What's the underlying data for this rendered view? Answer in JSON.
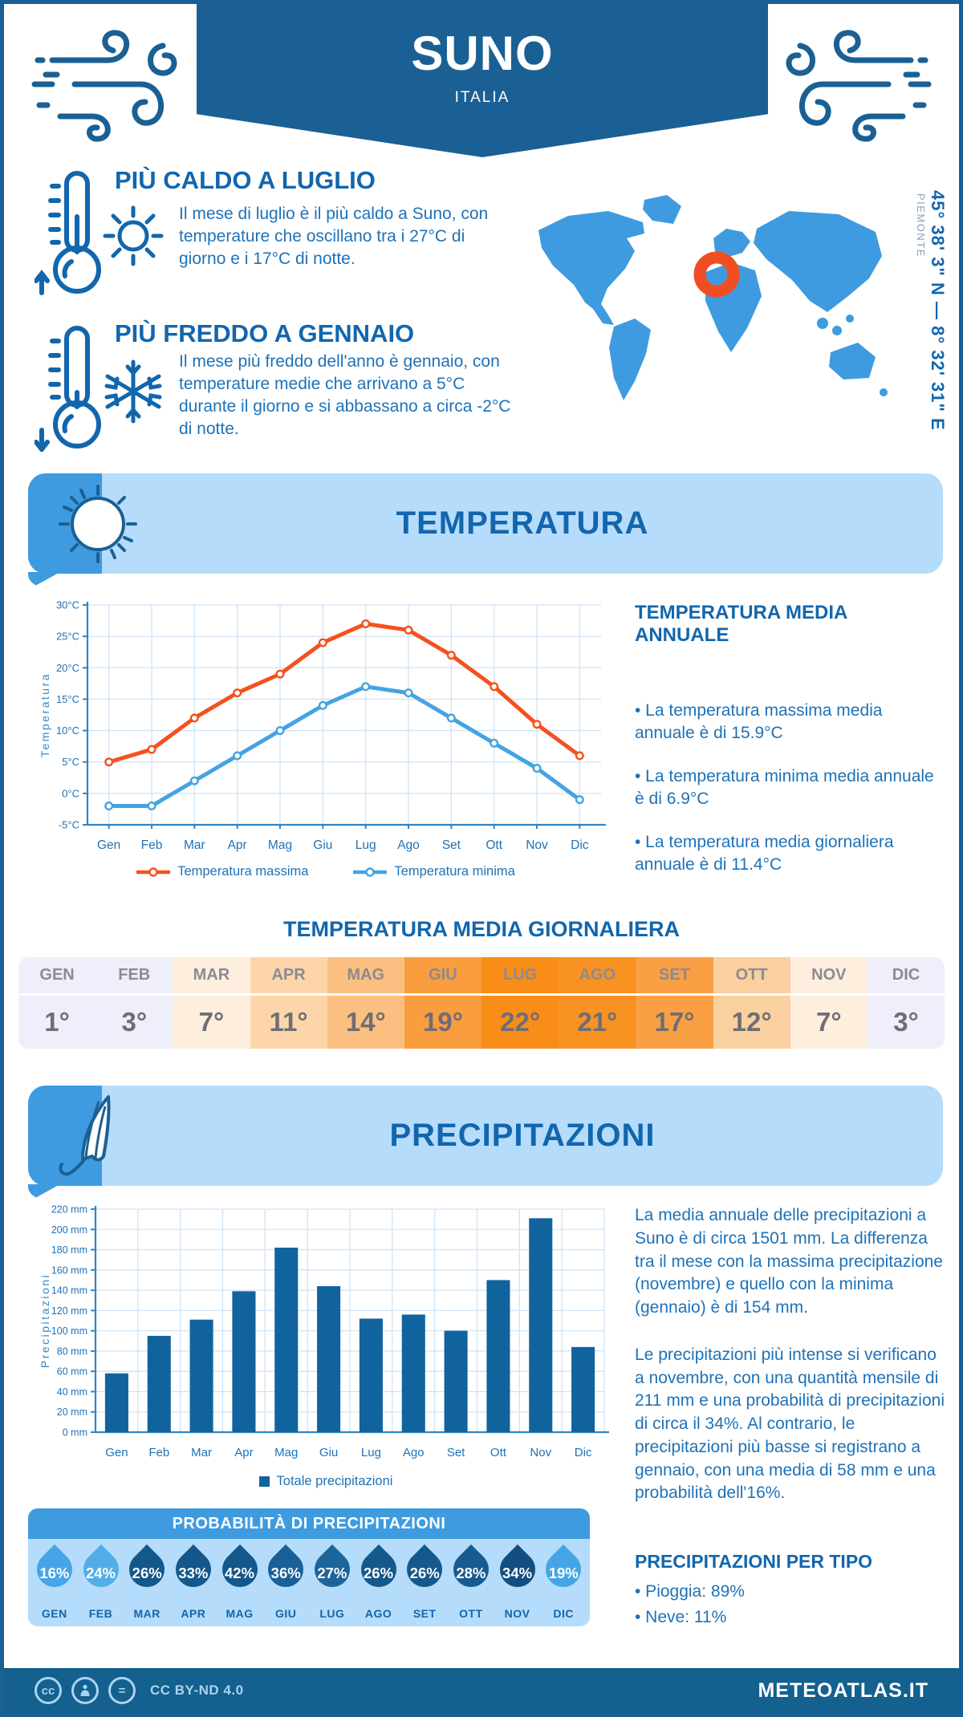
{
  "colors": {
    "primary": "#1b6094",
    "medium": "#3e9be0",
    "light_panel": "#b5dcfa",
    "heading": "#1266ad",
    "body_text": "#1e72b8",
    "line_max": "#f4511e",
    "line_min": "#45a3e2",
    "bar": "#11639e",
    "marker": "#f04e22",
    "grid": "#cfe4f6",
    "axis": "#2f86c4"
  },
  "header": {
    "title": "SUNO",
    "subtitle": "ITALIA"
  },
  "highlights": {
    "hot": {
      "title": "PIÙ CALDO A LUGLIO",
      "text": "Il mese di luglio è il più caldo a Suno, con temperature che oscillano tra i 27°C di giorno e i 17°C di notte."
    },
    "cold": {
      "title": "PIÙ FREDDO A GENNAIO",
      "text": "Il mese più freddo dell'anno è gennaio, con temperature medie che arrivano a 5°C durante il giorno e si abbassano a circa -2°C di notte."
    }
  },
  "map": {
    "coordinates": "45° 38' 3\" N — 8° 32' 31\" E",
    "region": "PIEMONTE"
  },
  "sections": {
    "temperature": "TEMPERATURA",
    "precipitation": "PRECIPITAZIONI"
  },
  "annual": {
    "title": "TEMPERATURA MEDIA ANNUALE",
    "bullets": [
      "• La temperatura massima media annuale è di 15.9°C",
      "• La temperatura minima media annuale è di 6.9°C",
      "• La temperatura media giornaliera annuale è di 11.4°C"
    ]
  },
  "daily_table": {
    "title": "TEMPERATURA MEDIA GIORNALIERA",
    "months": [
      "GEN",
      "FEB",
      "MAR",
      "APR",
      "MAG",
      "GIU",
      "LUG",
      "AGO",
      "SET",
      "OTT",
      "NOV",
      "DIC"
    ],
    "values": [
      "1°",
      "3°",
      "7°",
      "11°",
      "14°",
      "19°",
      "22°",
      "21°",
      "17°",
      "12°",
      "7°",
      "3°"
    ],
    "cell_colors": [
      "#eeeffa",
      "#eeeffa",
      "#fdeedd",
      "#fcd6aa",
      "#fbbf81",
      "#f99d3e",
      "#f88d18",
      "#f89222",
      "#f99f44",
      "#fbd0a0",
      "#fdeedd",
      "#eeeffa"
    ]
  },
  "chart_data": [
    {
      "type": "line",
      "title": "Temperatura media mensile",
      "categories": [
        "Gen",
        "Feb",
        "Mar",
        "Apr",
        "Mag",
        "Giu",
        "Lug",
        "Ago",
        "Set",
        "Ott",
        "Nov",
        "Dic"
      ],
      "series": [
        {
          "name": "Temperatura massima",
          "color": "#f4511e",
          "values": [
            5,
            7,
            12,
            16,
            19,
            24,
            27,
            26,
            22,
            17,
            11,
            6
          ]
        },
        {
          "name": "Temperatura minima",
          "color": "#45a3e2",
          "values": [
            -2,
            -2,
            2,
            6,
            10,
            14,
            17,
            16,
            12,
            8,
            4,
            -1
          ]
        }
      ],
      "ylabel": "Temperatura",
      "ylim": [
        -5,
        30
      ],
      "ytick_step": 5,
      "ytick_suffix": "°C",
      "grid": true,
      "legend_position": "bottom"
    },
    {
      "type": "bar",
      "title": "Precipitazioni mensili",
      "categories": [
        "Gen",
        "Feb",
        "Mar",
        "Apr",
        "Mag",
        "Giu",
        "Lug",
        "Ago",
        "Set",
        "Ott",
        "Nov",
        "Dic"
      ],
      "series": [
        {
          "name": "Totale precipitazioni",
          "color": "#11639e",
          "values": [
            58,
            95,
            111,
            139,
            182,
            144,
            112,
            116,
            100,
            150,
            211,
            84
          ]
        }
      ],
      "ylabel": "Precipitazioni",
      "ylim": [
        0,
        220
      ],
      "ytick_step": 20,
      "ytick_suffix": " mm",
      "grid": true,
      "legend_position": "bottom"
    }
  ],
  "precip_text": {
    "p1": "La media annuale delle precipitazioni a Suno è di circa 1501 mm. La differenza tra il mese con la massima precipitazione (novembre) e quello con la minima (gennaio) è di 154 mm.",
    "p2": "Le precipitazioni più intense si verificano a novembre, con una quantità mensile di 211 mm e una probabilità di precipitazioni di circa il 34%. Al contrario, le precipitazioni più basse si registrano a gennaio, con una media di 58 mm e una probabilità dell'16%."
  },
  "probability": {
    "title": "PROBABILITÀ DI PRECIPITAZIONI",
    "months": [
      "GEN",
      "FEB",
      "MAR",
      "APR",
      "MAG",
      "GIU",
      "LUG",
      "AGO",
      "SET",
      "OTT",
      "NOV",
      "DIC"
    ],
    "values": [
      "16%",
      "24%",
      "26%",
      "33%",
      "42%",
      "36%",
      "27%",
      "26%",
      "26%",
      "28%",
      "34%",
      "19%"
    ],
    "drop_colors": [
      "#45a5e6",
      "#52ade8",
      "#14578a",
      "#14578a",
      "#14578a",
      "#1a6098",
      "#1c649c",
      "#15588c",
      "#15588c",
      "#175b90",
      "#124f80",
      "#45a5e6"
    ]
  },
  "precip_type": {
    "title": "PRECIPITAZIONI PER TIPO",
    "items": [
      "• Pioggia: 89%",
      "• Neve: 11%"
    ]
  },
  "footer": {
    "license": "CC BY-ND 4.0",
    "brand": "METEOATLAS.IT",
    "icons": [
      "cc",
      "attribution",
      "no-derivatives"
    ]
  }
}
